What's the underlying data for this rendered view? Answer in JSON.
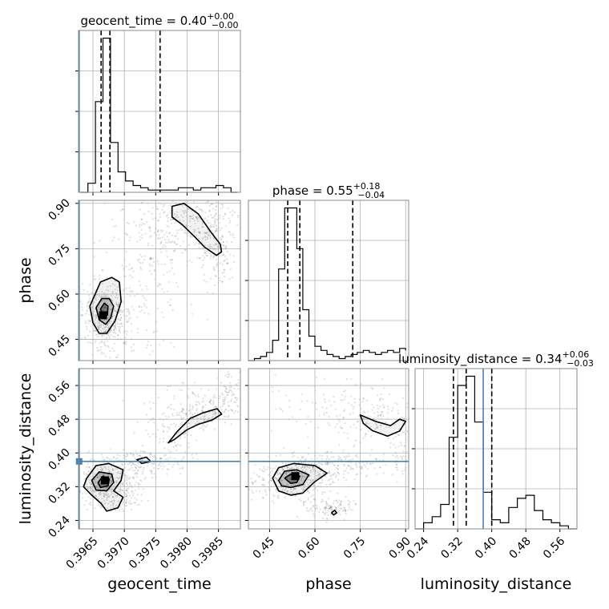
{
  "chart_data": {
    "type": "corner",
    "params": [
      "geocent_time",
      "phase",
      "luminosity_distance"
    ],
    "axis_labels": [
      "geocent_time",
      "phase",
      "luminosity_distance"
    ],
    "titles": [
      {
        "name": "geocent_time",
        "median": "0.40",
        "plus": "+0.00",
        "minus": "−0.00"
      },
      {
        "name": "phase",
        "median": "0.55",
        "plus": "+0.18",
        "minus": "−0.04"
      },
      {
        "name": "luminosity_distance",
        "median": "0.34",
        "plus": "+0.06",
        "minus": "−0.03"
      }
    ],
    "ranges": [
      [
        0.39627,
        0.39885
      ],
      [
        0.38,
        0.91
      ],
      [
        0.22,
        0.6
      ]
    ],
    "ticks": [
      {
        "values": [
          0.3965,
          0.397,
          0.3975,
          0.398,
          0.3985
        ],
        "labels": [
          "0.3965",
          "0.3970",
          "0.3975",
          "0.3980",
          "0.3985"
        ]
      },
      {
        "values": [
          0.45,
          0.6,
          0.75,
          0.9
        ],
        "labels": [
          "0.45",
          "0.60",
          "0.75",
          "0.90"
        ]
      },
      {
        "values": [
          0.24,
          0.32,
          0.4,
          0.48,
          0.56
        ],
        "labels": [
          "0.24",
          "0.32",
          "0.40",
          "0.48",
          "0.56"
        ]
      }
    ],
    "truths": [
      0.39628,
      null,
      0.38
    ],
    "quantiles": [
      [
        0.39663,
        0.39677,
        0.39757
      ],
      [
        0.51,
        0.55,
        0.725
      ],
      [
        0.31,
        0.34,
        0.4
      ]
    ],
    "histograms": [
      {
        "bins": [
          0.3963,
          0.39642,
          0.39654,
          0.39666,
          0.39678,
          0.3969,
          0.39702,
          0.39714,
          0.39726,
          0.39738,
          0.3975,
          0.39762,
          0.39774,
          0.39786,
          0.39798,
          0.3981,
          0.39822,
          0.39834,
          0.39846,
          0.39858,
          0.3987,
          0.3988
        ],
        "counts": [
          0,
          4,
          40,
          68,
          22,
          9,
          5,
          3,
          2,
          1,
          1,
          1,
          1,
          2,
          2,
          1,
          2,
          2,
          3,
          2,
          0,
          0
        ]
      },
      {
        "bins": [
          0.38,
          0.4,
          0.42,
          0.44,
          0.46,
          0.48,
          0.5,
          0.52,
          0.54,
          0.56,
          0.58,
          0.6,
          0.62,
          0.64,
          0.66,
          0.68,
          0.7,
          0.72,
          0.74,
          0.76,
          0.78,
          0.8,
          0.82,
          0.84,
          0.86,
          0.88,
          0.9
        ],
        "counts": [
          0,
          1,
          2,
          4,
          10,
          45,
          75,
          75,
          55,
          25,
          12,
          7,
          5,
          3,
          2,
          1,
          2,
          3,
          4,
          5,
          4,
          3,
          4,
          5,
          4,
          6,
          5
        ]
      },
      {
        "bins": [
          0.22,
          0.24,
          0.26,
          0.28,
          0.3,
          0.32,
          0.34,
          0.36,
          0.38,
          0.4,
          0.42,
          0.44,
          0.46,
          0.48,
          0.5,
          0.52,
          0.54,
          0.56,
          0.58,
          0.6
        ],
        "counts": [
          0,
          2,
          4,
          8,
          30,
          47,
          50,
          35,
          12,
          3,
          2,
          7,
          10,
          11,
          6,
          3,
          2,
          1,
          0
        ]
      }
    ],
    "contours": [
      {
        "row": 1,
        "col": 0,
        "paths": [
          [
            [
              0.39645,
              0.56
            ],
            [
              0.3965,
              0.505
            ],
            [
              0.3966,
              0.47
            ],
            [
              0.39672,
              0.47
            ],
            [
              0.39685,
              0.51
            ],
            [
              0.39695,
              0.575
            ],
            [
              0.39692,
              0.64
            ],
            [
              0.3968,
              0.655
            ],
            [
              0.39662,
              0.64
            ]
          ],
          [
            [
              0.39655,
              0.555
            ],
            [
              0.3966,
              0.515
            ],
            [
              0.3967,
              0.5
            ],
            [
              0.39678,
              0.52
            ],
            [
              0.39683,
              0.56
            ],
            [
              0.39676,
              0.585
            ],
            [
              0.39664,
              0.585
            ]
          ],
          [
            [
              0.39662,
              0.55
            ],
            [
              0.39667,
              0.525
            ],
            [
              0.39673,
              0.53
            ],
            [
              0.39674,
              0.56
            ],
            [
              0.39668,
              0.57
            ]
          ],
          [
            [
              0.39776,
              0.89
            ],
            [
              0.39795,
              0.9
            ],
            [
              0.39818,
              0.865
            ],
            [
              0.39838,
              0.805
            ],
            [
              0.39853,
              0.765
            ],
            [
              0.39855,
              0.74
            ],
            [
              0.39847,
              0.728
            ],
            [
              0.39828,
              0.755
            ],
            [
              0.39812,
              0.79
            ],
            [
              0.39792,
              0.83
            ],
            [
              0.39776,
              0.855
            ]
          ]
        ],
        "peaks": [
          [
            0.39666,
            0.53
          ]
        ]
      },
      {
        "row": 2,
        "col": 0,
        "paths": [
          [
            [
              0.3964,
              0.34
            ],
            [
              0.39655,
              0.37
            ],
            [
              0.39675,
              0.375
            ],
            [
              0.39698,
              0.36
            ],
            [
              0.39695,
              0.335
            ],
            [
              0.39683,
              0.31
            ],
            [
              0.39698,
              0.295
            ],
            [
              0.3969,
              0.27
            ],
            [
              0.39672,
              0.262
            ],
            [
              0.39663,
              0.28
            ],
            [
              0.39648,
              0.3
            ],
            [
              0.39635,
              0.32
            ]
          ],
          [
            [
              0.39648,
              0.335
            ],
            [
              0.3966,
              0.355
            ],
            [
              0.3968,
              0.35
            ],
            [
              0.39683,
              0.33
            ],
            [
              0.39672,
              0.31
            ],
            [
              0.39655,
              0.312
            ]
          ],
          [
            [
              0.39658,
              0.33
            ],
            [
              0.39666,
              0.345
            ],
            [
              0.39676,
              0.338
            ],
            [
              0.39674,
              0.322
            ],
            [
              0.39662,
              0.318
            ]
          ],
          [
            [
              0.3977,
              0.424
            ],
            [
              0.39785,
              0.452
            ],
            [
              0.39805,
              0.482
            ],
            [
              0.39825,
              0.495
            ],
            [
              0.39848,
              0.505
            ],
            [
              0.39855,
              0.492
            ],
            [
              0.3984,
              0.478
            ],
            [
              0.39818,
              0.468
            ],
            [
              0.398,
              0.455
            ],
            [
              0.3978,
              0.432
            ]
          ],
          [
            [
              0.3972,
              0.384
            ],
            [
              0.39735,
              0.39
            ],
            [
              0.39742,
              0.38
            ],
            [
              0.39728,
              0.375
            ]
          ]
        ],
        "peaks": [
          [
            0.39669,
            0.335
          ]
        ]
      },
      {
        "row": 2,
        "col": 1,
        "paths": [
          [
            [
              0.46,
              0.34
            ],
            [
              0.48,
              0.365
            ],
            [
              0.53,
              0.375
            ],
            [
              0.6,
              0.37
            ],
            [
              0.64,
              0.352
            ],
            [
              0.6,
              0.332
            ],
            [
              0.56,
              0.305
            ],
            [
              0.52,
              0.3
            ],
            [
              0.48,
              0.31
            ]
          ],
          [
            [
              0.48,
              0.335
            ],
            [
              0.5,
              0.357
            ],
            [
              0.54,
              0.36
            ],
            [
              0.58,
              0.348
            ],
            [
              0.56,
              0.325
            ],
            [
              0.52,
              0.318
            ],
            [
              0.49,
              0.322
            ]
          ],
          [
            [
              0.5,
              0.34
            ],
            [
              0.52,
              0.35
            ],
            [
              0.55,
              0.345
            ],
            [
              0.54,
              0.33
            ],
            [
              0.52,
              0.328
            ]
          ],
          [
            [
              0.75,
              0.49
            ],
            [
              0.8,
              0.475
            ],
            [
              0.85,
              0.465
            ],
            [
              0.88,
              0.48
            ],
            [
              0.9,
              0.475
            ],
            [
              0.88,
              0.452
            ],
            [
              0.84,
              0.44
            ],
            [
              0.79,
              0.453
            ],
            [
              0.76,
              0.47
            ]
          ],
          [
            [
              0.655,
              0.258
            ],
            [
              0.665,
              0.264
            ],
            [
              0.672,
              0.258
            ],
            [
              0.662,
              0.253
            ]
          ]
        ],
        "peaks": [
          [
            0.535,
            0.345
          ]
        ]
      }
    ],
    "legend": "none",
    "grid": true
  }
}
